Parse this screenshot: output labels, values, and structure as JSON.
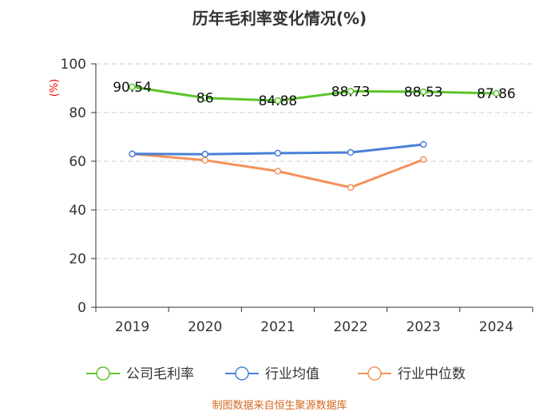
{
  "chart_data": {
    "type": "line",
    "title": "历年毛利率变化情况(%)",
    "ylabel": "(%)",
    "xlabel": "",
    "categories": [
      "2019",
      "2020",
      "2021",
      "2022",
      "2023",
      "2024"
    ],
    "ylim": [
      0,
      100
    ],
    "yticks": [
      0,
      20,
      40,
      60,
      80,
      100
    ],
    "grid": true,
    "legend_position": "bottom",
    "series": [
      {
        "name": "公司毛利率",
        "color": "#5cc42b",
        "values": [
          90.54,
          86,
          84.88,
          88.73,
          88.53,
          87.86
        ],
        "labels": [
          "90.54",
          "86",
          "84.88",
          "88.73",
          "88.53",
          "87.86"
        ]
      },
      {
        "name": "行业均值",
        "color": "#4a80d8",
        "values": [
          63.0,
          62.9,
          63.3,
          63.6,
          66.9,
          null
        ]
      },
      {
        "name": "行业中位数",
        "color": "#f4915c",
        "values": [
          63.0,
          60.4,
          55.9,
          49.2,
          60.7,
          null
        ]
      }
    ]
  },
  "footer": {
    "source": "制图数据来自恒生聚源数据库"
  }
}
